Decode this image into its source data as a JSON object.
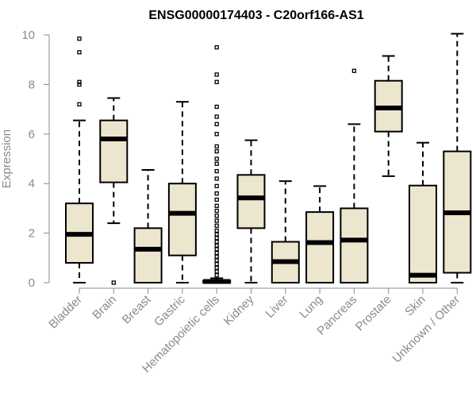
{
  "chart_data": {
    "type": "boxplot",
    "title": "ENSG00000174403 - C20orf166-AS1",
    "xlabel": "",
    "ylabel": "Expression",
    "ylim": [
      0,
      10
    ],
    "yticks": [
      0,
      2,
      4,
      6,
      8,
      10
    ],
    "grid": false,
    "box_color": "#ede6cf",
    "categories": [
      "Bladder",
      "Brain",
      "Breast",
      "Gastric",
      "Hematopoietic cells",
      "Kidney",
      "Liver",
      "Lung",
      "Pancreas",
      "Prostate",
      "Skin",
      "Unknown / Other"
    ],
    "boxes": [
      {
        "min": 0.0,
        "q1": 0.8,
        "median": 1.95,
        "q3": 3.2,
        "max": 6.55,
        "outliers": [
          7.2,
          8.0,
          8.1,
          9.3,
          9.85
        ]
      },
      {
        "min": 2.4,
        "q1": 4.05,
        "median": 5.8,
        "q3": 6.55,
        "max": 7.45,
        "outliers": [
          0.0
        ]
      },
      {
        "min": 0.0,
        "q1": 0.0,
        "median": 1.35,
        "q3": 2.2,
        "max": 4.55,
        "outliers": []
      },
      {
        "min": 0.0,
        "q1": 1.1,
        "median": 2.8,
        "q3": 4.0,
        "max": 7.3,
        "outliers": []
      },
      {
        "min": 0.0,
        "q1": 0.0,
        "median": 0.05,
        "q3": 0.08,
        "max": 0.18,
        "outliers": [
          0.3,
          0.45,
          0.6,
          0.75,
          0.9,
          1.05,
          1.2,
          1.35,
          1.5,
          1.65,
          1.8,
          1.95,
          2.1,
          2.3,
          2.5,
          2.7,
          2.9,
          3.1,
          3.35,
          3.6,
          3.9,
          4.2,
          4.5,
          4.8,
          5.0,
          5.3,
          5.5,
          6.0,
          6.4,
          6.7,
          7.1,
          8.1,
          8.4,
          9.5
        ]
      },
      {
        "min": 0.0,
        "q1": 2.2,
        "median": 3.42,
        "q3": 4.35,
        "max": 5.75,
        "outliers": []
      },
      {
        "min": 0.0,
        "q1": 0.0,
        "median": 0.85,
        "q3": 1.65,
        "max": 4.1,
        "outliers": []
      },
      {
        "min": 0.0,
        "q1": 0.0,
        "median": 1.62,
        "q3": 2.85,
        "max": 3.9,
        "outliers": []
      },
      {
        "min": 0.0,
        "q1": 0.0,
        "median": 1.72,
        "q3": 3.0,
        "max": 6.4,
        "outliers": [
          8.55
        ]
      },
      {
        "min": 4.3,
        "q1": 6.1,
        "median": 7.05,
        "q3": 8.15,
        "max": 9.15,
        "outliers": []
      },
      {
        "min": 0.0,
        "q1": 0.0,
        "median": 0.3,
        "q3": 3.92,
        "max": 5.65,
        "outliers": []
      },
      {
        "min": 0.0,
        "q1": 0.4,
        "median": 2.82,
        "q3": 5.3,
        "max": 10.05,
        "outliers": []
      }
    ]
  }
}
